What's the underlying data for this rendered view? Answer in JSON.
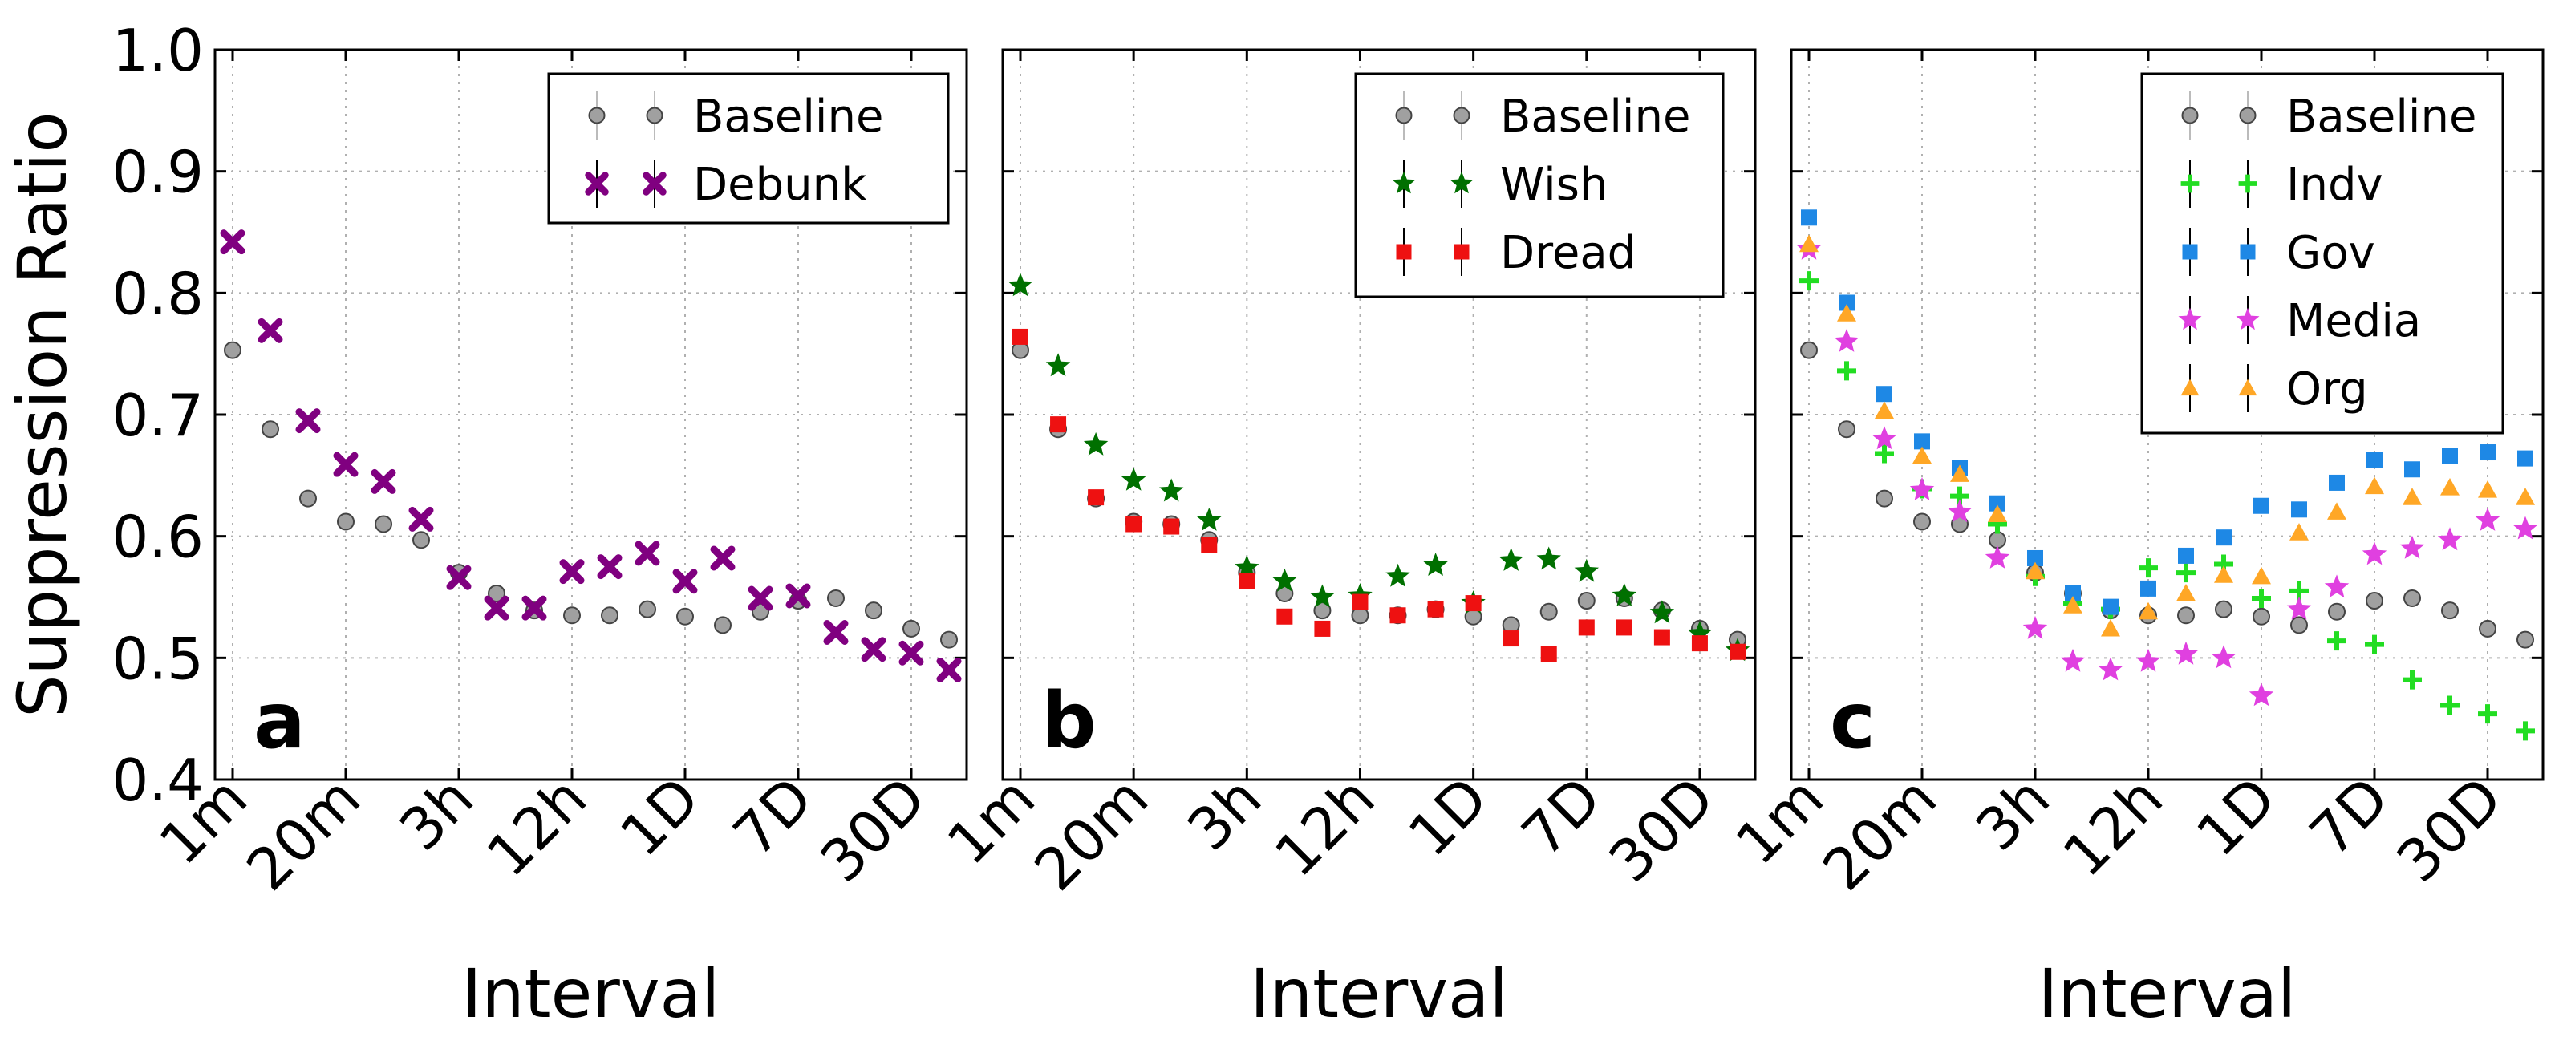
{
  "chart_data": [
    {
      "type": "scatter",
      "panel_label": "a",
      "xlabel": "Interval",
      "ylabel": "Suppression Ratio",
      "ylim": [
        0.4,
        1.0
      ],
      "yticks": [
        "0.4",
        "0.5",
        "0.6",
        "0.7",
        "0.8",
        "0.9",
        "1.0"
      ],
      "xtick_labels": [
        "1m",
        "20m",
        "3h",
        "12h",
        "1D",
        "7D",
        "30D"
      ],
      "xtick_positions": [
        0,
        3,
        6,
        9,
        12,
        15,
        18
      ],
      "grid": true,
      "legend_position": "top-right",
      "series": [
        {
          "name": "Baseline",
          "marker": "circle",
          "color": "#a0a0a0",
          "values": [
            0.753,
            0.688,
            0.631,
            0.612,
            0.61,
            0.597,
            0.57,
            0.553,
            0.539,
            0.535,
            0.535,
            0.54,
            0.534,
            0.527,
            0.538,
            0.547,
            0.549,
            0.539,
            0.524,
            0.515
          ]
        },
        {
          "name": "Debunk",
          "marker": "x",
          "color": "#800080",
          "values": [
            0.842,
            0.769,
            0.695,
            0.659,
            0.645,
            0.614,
            0.566,
            0.541,
            0.541,
            0.571,
            0.575,
            0.586,
            0.563,
            0.582,
            0.549,
            0.551,
            0.521,
            0.507,
            0.504,
            0.49
          ]
        }
      ]
    },
    {
      "type": "scatter",
      "panel_label": "b",
      "xlabel": "Interval",
      "ylim": [
        0.4,
        1.0
      ],
      "xtick_labels": [
        "1m",
        "20m",
        "3h",
        "12h",
        "1D",
        "7D",
        "30D"
      ],
      "xtick_positions": [
        0,
        3,
        6,
        9,
        12,
        15,
        18
      ],
      "grid": true,
      "legend_position": "top-right",
      "series": [
        {
          "name": "Baseline",
          "marker": "circle",
          "color": "#a0a0a0",
          "values": [
            0.753,
            0.688,
            0.631,
            0.612,
            0.61,
            0.597,
            0.57,
            0.553,
            0.539,
            0.535,
            0.535,
            0.54,
            0.534,
            0.527,
            0.538,
            0.547,
            0.549,
            0.539,
            0.524,
            0.515
          ]
        },
        {
          "name": "Wish",
          "marker": "star",
          "color": "#007000",
          "values": [
            0.806,
            0.74,
            0.675,
            0.646,
            0.637,
            0.613,
            0.574,
            0.563,
            0.55,
            0.551,
            0.567,
            0.576,
            0.545,
            0.58,
            0.581,
            0.571,
            0.551,
            0.537,
            0.52,
            0.506
          ]
        },
        {
          "name": "Dread",
          "marker": "square",
          "color": "#ee1111",
          "values": [
            0.764,
            0.692,
            0.632,
            0.61,
            0.608,
            0.593,
            0.563,
            0.534,
            0.524,
            0.546,
            0.535,
            0.54,
            0.545,
            0.516,
            0.503,
            0.525,
            0.525,
            0.517,
            0.512,
            0.505
          ]
        }
      ]
    },
    {
      "type": "scatter",
      "panel_label": "c",
      "xlabel": "Interval",
      "ylim": [
        0.4,
        1.0
      ],
      "xtick_labels": [
        "1m",
        "20m",
        "3h",
        "12h",
        "1D",
        "7D",
        "30D"
      ],
      "xtick_positions": [
        0,
        3,
        6,
        9,
        12,
        15,
        18
      ],
      "grid": true,
      "legend_position": "top-right",
      "series": [
        {
          "name": "Baseline",
          "marker": "circle",
          "color": "#a0a0a0",
          "values": [
            0.753,
            0.688,
            0.631,
            0.612,
            0.61,
            0.597,
            0.57,
            0.553,
            0.539,
            0.535,
            0.535,
            0.54,
            0.534,
            0.527,
            0.538,
            0.547,
            0.549,
            0.539,
            0.524,
            0.515
          ]
        },
        {
          "name": "Indv",
          "marker": "plus",
          "color": "#22dd22",
          "values": [
            0.81,
            0.736,
            0.668,
            0.639,
            0.633,
            0.61,
            0.567,
            0.545,
            0.54,
            0.574,
            0.57,
            0.577,
            0.549,
            0.555,
            0.514,
            0.511,
            0.482,
            0.461,
            0.454,
            0.44
          ]
        },
        {
          "name": "Gov",
          "marker": "square",
          "color": "#1e88e5",
          "values": [
            0.862,
            0.792,
            0.717,
            0.678,
            0.656,
            0.627,
            0.582,
            0.553,
            0.542,
            0.557,
            0.584,
            0.599,
            0.625,
            0.622,
            0.644,
            0.663,
            0.655,
            0.666,
            0.669,
            0.664
          ]
        },
        {
          "name": "Media",
          "marker": "star",
          "color": "#e040e0",
          "values": [
            0.836,
            0.76,
            0.68,
            0.638,
            0.62,
            0.582,
            0.524,
            0.497,
            0.49,
            0.497,
            0.503,
            0.5,
            0.469,
            0.54,
            0.558,
            0.585,
            0.59,
            0.597,
            0.613,
            0.606
          ]
        },
        {
          "name": "Org",
          "marker": "triangle",
          "color": "#ffa726",
          "values": [
            0.84,
            0.783,
            0.703,
            0.666,
            0.651,
            0.618,
            0.571,
            0.543,
            0.524,
            0.538,
            0.553,
            0.568,
            0.567,
            0.603,
            0.62,
            0.641,
            0.632,
            0.64,
            0.638,
            0.632
          ]
        }
      ]
    }
  ]
}
